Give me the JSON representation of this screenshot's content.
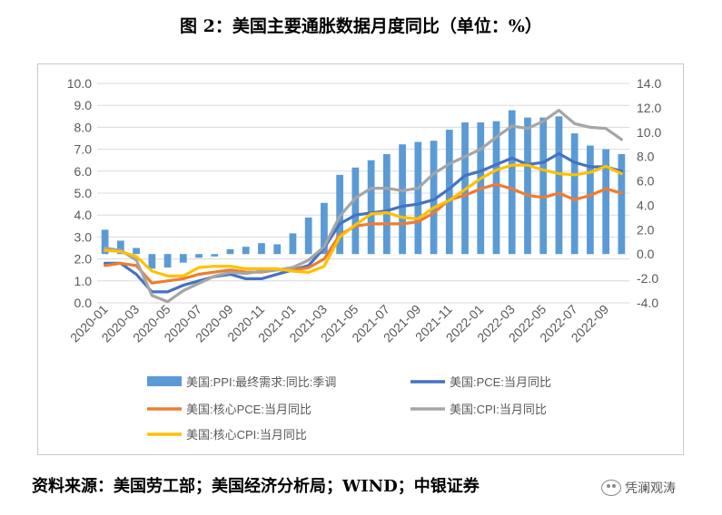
{
  "title": "图 2：美国主要通胀数据月度同比（单位：%）",
  "source": "资料来源：美国劳工部；美国经济分析局；WIND；中银证券",
  "watermark": "凭澜观涛",
  "chart_data": {
    "type": "bar+line",
    "categories": [
      "2020-01",
      "2020-02",
      "2020-03",
      "2020-04",
      "2020-05",
      "2020-06",
      "2020-07",
      "2020-08",
      "2020-09",
      "2020-10",
      "2020-11",
      "2020-12",
      "2021-01",
      "2021-02",
      "2021-03",
      "2021-04",
      "2021-05",
      "2021-06",
      "2021-07",
      "2021-08",
      "2021-09",
      "2021-10",
      "2021-11",
      "2021-12",
      "2022-01",
      "2022-02",
      "2022-03",
      "2022-04",
      "2022-05",
      "2022-06",
      "2022-07",
      "2022-08",
      "2022-09",
      "2022-10"
    ],
    "x_tick_labels": [
      "2020-01",
      "2020-03",
      "2020-05",
      "2020-07",
      "2020-09",
      "2020-11",
      "2021-01",
      "2021-03",
      "2021-05",
      "2021-07",
      "2021-09",
      "2021-11",
      "2022-01",
      "2022-03",
      "2022-05",
      "2022-07",
      "2022-09"
    ],
    "y_left": {
      "ylim": [
        0,
        10
      ],
      "ticks": [
        "0.0",
        "1.0",
        "2.0",
        "3.0",
        "4.0",
        "5.0",
        "6.0",
        "7.0",
        "8.0",
        "9.0",
        "10.0"
      ]
    },
    "y_right": {
      "ylim": [
        -4,
        14
      ],
      "ticks": [
        "-4.0",
        "-2.0",
        "0.0",
        "2.0",
        "4.0",
        "6.0",
        "8.0",
        "10.0",
        "12.0",
        "14.0"
      ]
    },
    "grid": true,
    "legend_position": "bottom",
    "series": [
      {
        "name": "美国:PPI:最终需求:同比:季调",
        "type": "bar",
        "axis": "right",
        "color": "#5b9bd5",
        "values": [
          2.0,
          1.1,
          0.5,
          -1.2,
          -1.1,
          -0.7,
          -0.3,
          -0.2,
          0.4,
          0.6,
          0.9,
          0.8,
          1.7,
          3.0,
          4.2,
          6.5,
          7.1,
          7.7,
          8.2,
          9.0,
          9.2,
          9.3,
          10.2,
          10.8,
          10.8,
          10.9,
          11.8,
          11.2,
          11.2,
          11.3,
          9.9,
          8.9,
          8.6,
          8.2
        ]
      },
      {
        "name": "美国:PCE:当月同比",
        "type": "line",
        "axis": "left",
        "color": "#4472c4",
        "values": [
          1.8,
          1.8,
          1.3,
          0.5,
          0.5,
          0.8,
          1.0,
          1.2,
          1.3,
          1.1,
          1.1,
          1.3,
          1.5,
          1.7,
          2.5,
          3.6,
          4.0,
          4.1,
          4.2,
          4.4,
          4.5,
          4.7,
          5.2,
          5.8,
          6.0,
          6.3,
          6.6,
          6.3,
          6.4,
          6.8,
          6.4,
          6.2,
          6.2,
          6.0
        ]
      },
      {
        "name": "美国:核心PCE:当月同比",
        "type": "line",
        "axis": "left",
        "color": "#ed7d31",
        "values": [
          1.7,
          1.8,
          1.7,
          0.9,
          1.0,
          1.1,
          1.3,
          1.4,
          1.5,
          1.4,
          1.4,
          1.5,
          1.5,
          1.6,
          2.0,
          3.1,
          3.5,
          3.6,
          3.6,
          3.6,
          3.7,
          4.1,
          4.7,
          4.9,
          5.2,
          5.4,
          5.2,
          4.9,
          4.8,
          5.0,
          4.7,
          4.9,
          5.2,
          5.0
        ]
      },
      {
        "name": "美国:CPI:当月同比",
        "type": "line",
        "axis": "right",
        "color": "#a5a5a5",
        "values": [
          0.5,
          0.3,
          -0.5,
          -3.4,
          -3.9,
          -3.0,
          -2.4,
          -1.8,
          -1.5,
          -1.6,
          -1.4,
          -1.3,
          -1.1,
          -0.5,
          0.6,
          3.1,
          4.6,
          5.4,
          5.4,
          5.2,
          5.4,
          6.6,
          7.4,
          8.0,
          8.6,
          9.6,
          10.5,
          10.3,
          10.9,
          11.8,
          10.7,
          10.4,
          10.3,
          9.4
        ]
      },
      {
        "name": "美国:核心CPI:当月同比",
        "type": "line",
        "axis": "right",
        "color": "#ffc000",
        "values": [
          0.3,
          0.2,
          -0.2,
          -1.4,
          -1.8,
          -1.8,
          -1.1,
          -1.0,
          -1.0,
          -1.2,
          -1.2,
          -1.2,
          -1.4,
          -1.5,
          -1.0,
          1.4,
          2.4,
          3.3,
          3.4,
          3.0,
          2.9,
          3.8,
          4.4,
          5.3,
          6.2,
          6.9,
          7.3,
          7.3,
          6.9,
          6.6,
          6.5,
          6.7,
          7.2,
          6.6
        ]
      }
    ]
  }
}
